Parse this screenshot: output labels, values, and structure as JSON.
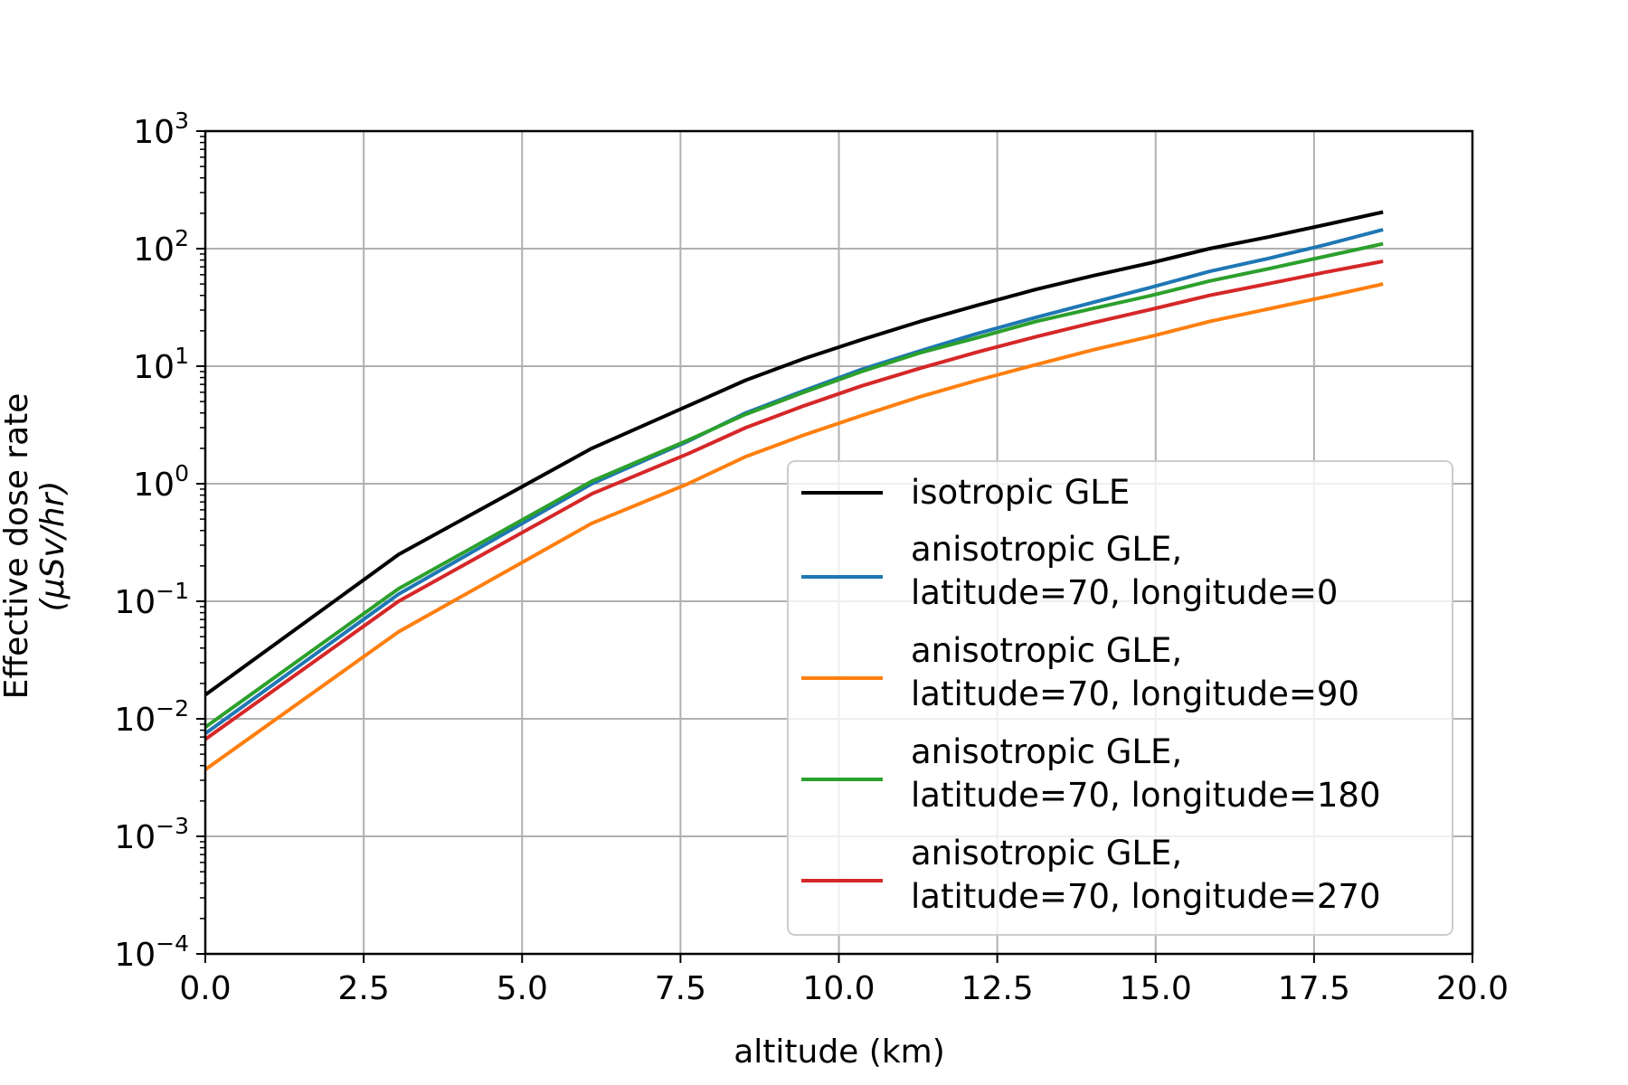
{
  "chart_data": {
    "type": "line",
    "title": "",
    "xlabel": "altitude (km)",
    "ylabel": [
      "Effective dose rate",
      "(μSv/hr)"
    ],
    "xlim": [
      0,
      20
    ],
    "ylim": [
      0.0001,
      1000
    ],
    "yscale": "log",
    "grid": true,
    "legend_position": "lower-right",
    "x_ticks": [
      "0.0",
      "2.5",
      "5.0",
      "7.5",
      "10.0",
      "12.5",
      "15.0",
      "17.5",
      "20.0"
    ],
    "y_ticks": [
      {
        "base": "10",
        "exp": "−4"
      },
      {
        "base": "10",
        "exp": "−3"
      },
      {
        "base": "10",
        "exp": "−2"
      },
      {
        "base": "10",
        "exp": "−1"
      },
      {
        "base": "10",
        "exp": "0"
      },
      {
        "base": "10",
        "exp": "1"
      },
      {
        "base": "10",
        "exp": "2"
      },
      {
        "base": "10",
        "exp": "3"
      }
    ],
    "x": [
      0,
      3.05,
      6.1,
      7.62,
      8.53,
      9.45,
      10.36,
      11.28,
      12.19,
      13.11,
      14.02,
      14.94,
      15.85,
      16.76,
      17.68,
      18.59
    ],
    "series": [
      {
        "name": "isotropic GLE",
        "color": "#000000",
        "values": [
          0.016,
          0.25,
          2.0,
          4.6,
          7.6,
          11.6,
          16.8,
          24.0,
          33.0,
          45.0,
          59.0,
          76.0,
          100.0,
          125.0,
          160.0,
          205.0
        ]
      },
      {
        "name": "anisotropic GLE,\nlatitude=70, longitude=0",
        "color": "#1f77b4",
        "values": [
          0.0075,
          0.115,
          1.0,
          2.3,
          4.0,
          6.2,
          9.4,
          13.5,
          19.0,
          26.0,
          35.0,
          47.0,
          64.0,
          82.0,
          108.0,
          145.0
        ]
      },
      {
        "name": "anisotropic GLE,\nlatitude=70, longitude=90",
        "color": "#ff7f0e",
        "values": [
          0.0037,
          0.055,
          0.46,
          1.0,
          1.7,
          2.6,
          3.8,
          5.5,
          7.6,
          10.3,
          13.8,
          18.0,
          24.0,
          30.5,
          39.0,
          50.0
        ]
      },
      {
        "name": "anisotropic GLE,\nlatitude=70, longitude=180",
        "color": "#2ca02c",
        "values": [
          0.0085,
          0.128,
          1.05,
          2.35,
          3.9,
          6.0,
          9.0,
          13.0,
          17.5,
          24.0,
          31.0,
          40.0,
          53.0,
          67.0,
          86.0,
          110.0
        ]
      },
      {
        "name": "anisotropic GLE,\nlatitude=70, longitude=270",
        "color": "#d62728",
        "values": [
          0.0067,
          0.1,
          0.82,
          1.8,
          3.0,
          4.6,
          6.8,
          9.6,
          13.2,
          17.8,
          23.5,
          30.5,
          40.0,
          50.0,
          63.0,
          78.0
        ]
      }
    ]
  }
}
